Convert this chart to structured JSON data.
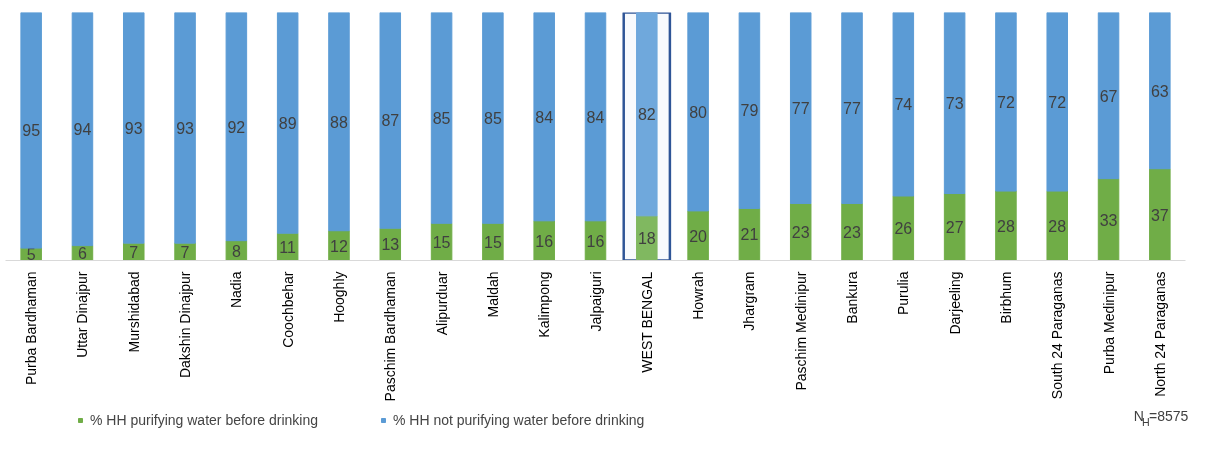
{
  "chart_data": {
    "type": "bar",
    "stacked": true,
    "categories": [
      "Purba Bardhaman",
      "Uttar Dinajpur",
      "Murshidabad",
      "Dakshin Dinajpur",
      "Nadia",
      "Coochbehar",
      "Hooghly",
      "Paschim Bardhaman",
      "Alipurduar",
      "Maldah",
      "Kalimpong",
      "Jalpaiguri",
      "WEST BENGAL",
      "Howrah",
      "Jhargram",
      "Paschim Medinipur",
      "Bankura",
      "Purulia",
      "Darjeeling",
      "Birbhum",
      "South 24 Paraganas",
      "Purba Medinipur",
      "North 24 Paraganas"
    ],
    "series": [
      {
        "name": "% HH purifying water before drinking",
        "color": "#70ad47",
        "colors": [
          "#70ad47",
          "#70ad47",
          "#70ad47",
          "#70ad47",
          "#70ad47",
          "#70ad47",
          "#70ad47",
          "#70ad47",
          "#70ad47",
          "#70ad47",
          "#70ad47",
          "#70ad47",
          "#80b860",
          "#70ad47",
          "#70ad47",
          "#70ad47",
          "#70ad47",
          "#70ad47",
          "#70ad47",
          "#70ad47",
          "#70ad47",
          "#70ad47",
          "#70ad47"
        ],
        "values": [
          5,
          6,
          7,
          7,
          8,
          11,
          12,
          13,
          15,
          15,
          16,
          16,
          18,
          20,
          21,
          23,
          23,
          26,
          27,
          28,
          28,
          33,
          37
        ]
      },
      {
        "name": "% HH not purifying water before drinking",
        "color": "#5b9bd5",
        "colors": [
          "#5b9bd5",
          "#5b9bd5",
          "#5b9bd5",
          "#5b9bd5",
          "#5b9bd5",
          "#5b9bd5",
          "#5b9bd5",
          "#5b9bd5",
          "#5b9bd5",
          "#5b9bd5",
          "#5b9bd5",
          "#5b9bd5",
          "#6fa8dc",
          "#5b9bd5",
          "#5b9bd5",
          "#5b9bd5",
          "#5b9bd5",
          "#5b9bd5",
          "#5b9bd5",
          "#5b9bd5",
          "#5b9bd5",
          "#5b9bd5",
          "#5b9bd5"
        ],
        "values": [
          95,
          94,
          93,
          93,
          92,
          89,
          88,
          87,
          85,
          85,
          84,
          84,
          82,
          80,
          79,
          77,
          77,
          74,
          73,
          72,
          72,
          67,
          63
        ]
      }
    ],
    "ylim": [
      0,
      100
    ],
    "tick_labels": "x",
    "data_labels": true,
    "grid": false,
    "legend": "bottom",
    "bands": [
      {
        "axis": "x",
        "from": "WEST BENGAL",
        "to": "WEST BENGAL",
        "color": "#2f5597"
      }
    ],
    "annotations": [
      "N$_{H}$=8575"
    ]
  }
}
